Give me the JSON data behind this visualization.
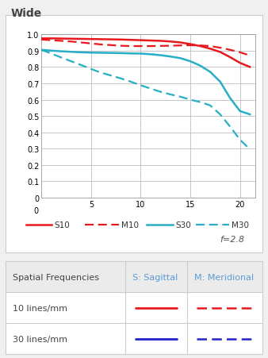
{
  "title": "Wide",
  "f_label": "f=2.8",
  "S10_color": "#e8191e",
  "M10_color": "#e8191e",
  "S30_color": "#29aec8",
  "M30_color": "#29aec8",
  "red_color": "#e8191e",
  "blue_color": "#2222cc",
  "S10_x": [
    0,
    1,
    2,
    3,
    4,
    5,
    6,
    7,
    8,
    9,
    10,
    11,
    12,
    13,
    14,
    15,
    16,
    17,
    18,
    19,
    20,
    21
  ],
  "S10_y": [
    0.975,
    0.975,
    0.974,
    0.973,
    0.972,
    0.971,
    0.97,
    0.969,
    0.968,
    0.966,
    0.964,
    0.962,
    0.96,
    0.956,
    0.95,
    0.94,
    0.928,
    0.912,
    0.892,
    0.86,
    0.825,
    0.8
  ],
  "M10_x": [
    0,
    1,
    2,
    3,
    4,
    5,
    6,
    7,
    8,
    9,
    10,
    11,
    12,
    13,
    14,
    15,
    16,
    17,
    18,
    19,
    20,
    21
  ],
  "M10_y": [
    0.968,
    0.964,
    0.96,
    0.956,
    0.95,
    0.944,
    0.938,
    0.934,
    0.93,
    0.928,
    0.928,
    0.928,
    0.929,
    0.93,
    0.932,
    0.933,
    0.932,
    0.928,
    0.918,
    0.905,
    0.89,
    0.87
  ],
  "S30_x": [
    0,
    1,
    2,
    3,
    4,
    5,
    6,
    7,
    8,
    9,
    10,
    11,
    12,
    13,
    14,
    15,
    16,
    17,
    18,
    19,
    20,
    21
  ],
  "S30_y": [
    0.905,
    0.9,
    0.896,
    0.893,
    0.89,
    0.888,
    0.887,
    0.886,
    0.885,
    0.883,
    0.882,
    0.878,
    0.872,
    0.864,
    0.854,
    0.835,
    0.808,
    0.77,
    0.71,
    0.61,
    0.53,
    0.51
  ],
  "M30_x": [
    0,
    1,
    2,
    3,
    4,
    5,
    6,
    7,
    8,
    9,
    10,
    11,
    12,
    13,
    14,
    15,
    16,
    17,
    18,
    19,
    20,
    21
  ],
  "M30_y": [
    0.905,
    0.882,
    0.858,
    0.835,
    0.812,
    0.788,
    0.765,
    0.748,
    0.73,
    0.71,
    0.688,
    0.668,
    0.648,
    0.632,
    0.618,
    0.6,
    0.585,
    0.565,
    0.51,
    0.435,
    0.355,
    0.295
  ],
  "xlim": [
    0,
    21.5
  ],
  "ylim": [
    0,
    1.0
  ],
  "xticks": [
    5,
    10,
    15,
    20
  ],
  "yticks": [
    0,
    0.1,
    0.2,
    0.3,
    0.4,
    0.5,
    0.6,
    0.7,
    0.8,
    0.9,
    1.0
  ],
  "table_headers": [
    "Spatial Frequencies",
    "S: Sagittal",
    "M: Meridional"
  ],
  "table_row1": "10 lines/mm",
  "table_row2": "30 lines/mm",
  "outer_bg": "#f0f0f0",
  "panel_bg": "#ffffff",
  "table_header_bg": "#ebebeb",
  "table_bg": "#ffffff",
  "grid_color": "#b0b0b0",
  "border_color": "#cccccc",
  "text_color": "#444444",
  "header_text_color": "#5b9bd5"
}
